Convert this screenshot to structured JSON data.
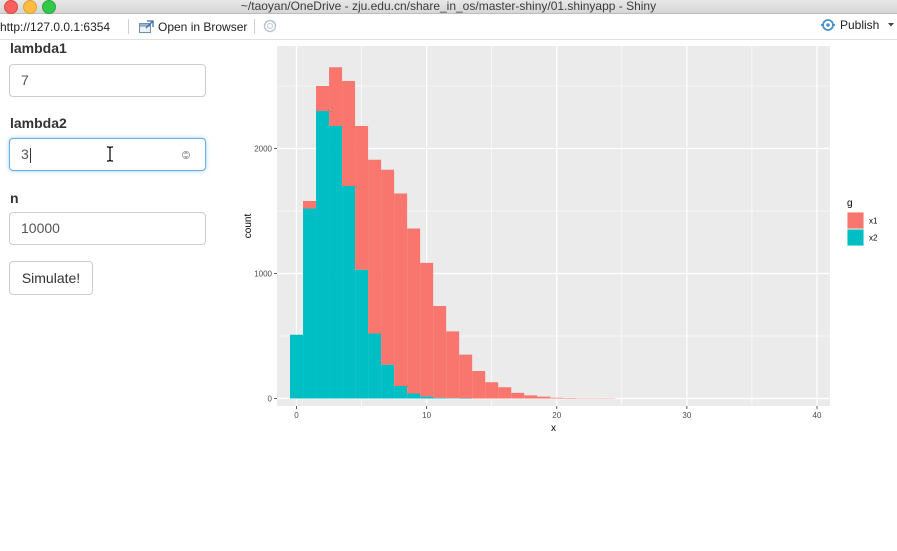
{
  "window": {
    "title": "~/taoyan/OneDrive - zju.edu.cn/share_in_os/master-shiny/01.shinyapp - Shiny"
  },
  "toolbar": {
    "url": "http://127.0.0.1:6354",
    "open_browser_label": "Open in Browser",
    "publish_label": "Publish",
    "icons": {
      "open_browser": "open-browser-icon",
      "refresh": "refresh-icon",
      "publish": "publish-icon"
    }
  },
  "form": {
    "lambda1": {
      "label": "lambda1",
      "value": "7"
    },
    "lambda2": {
      "label": "lambda2",
      "value": "3"
    },
    "n": {
      "label": "n",
      "value": "10000"
    },
    "simulate_label": "Simulate!"
  },
  "chart_data": {
    "type": "bar",
    "subtype": "stacked-histogram",
    "xlabel": "x",
    "ylabel": "count",
    "xlim": [
      -1.5,
      41
    ],
    "ylim": [
      -60,
      2820
    ],
    "x_ticks": [
      "0",
      "10",
      "20",
      "30",
      "40"
    ],
    "y_ticks": [
      "0",
      "1000",
      "2000"
    ],
    "legend": {
      "title": "g",
      "position": "right"
    },
    "bin_width": 1,
    "bin_centers": [
      0,
      1,
      2,
      3,
      4,
      5,
      6,
      7,
      8,
      9,
      10,
      11,
      12,
      13,
      14,
      15,
      16,
      17,
      18,
      19,
      20,
      21,
      22,
      23,
      24,
      25,
      26,
      27,
      28,
      29,
      30,
      31,
      32,
      33,
      34,
      35,
      36,
      37,
      38,
      39,
      40
    ],
    "series": [
      {
        "name": "x2",
        "color": "#00bfc4",
        "values": [
          510,
          1520,
          2300,
          2180,
          1700,
          1030,
          520,
          270,
          100,
          40,
          15,
          5,
          2,
          1,
          0,
          0,
          0,
          0,
          0,
          0,
          0,
          0,
          0,
          0,
          0,
          0,
          0,
          0,
          0,
          0,
          0,
          0,
          0,
          0,
          0,
          0,
          0,
          0,
          0,
          0,
          0
        ]
      },
      {
        "name": "x1",
        "color": "#f8766d",
        "values": [
          0,
          60,
          200,
          470,
          840,
          1150,
          1390,
          1560,
          1540,
          1320,
          1070,
          735,
          535,
          350,
          220,
          130,
          90,
          45,
          25,
          15,
          6,
          4,
          2,
          1,
          1,
          0,
          0,
          0,
          0,
          0,
          0,
          0,
          0,
          0,
          0,
          0,
          0,
          0,
          0,
          0,
          0
        ]
      }
    ]
  }
}
